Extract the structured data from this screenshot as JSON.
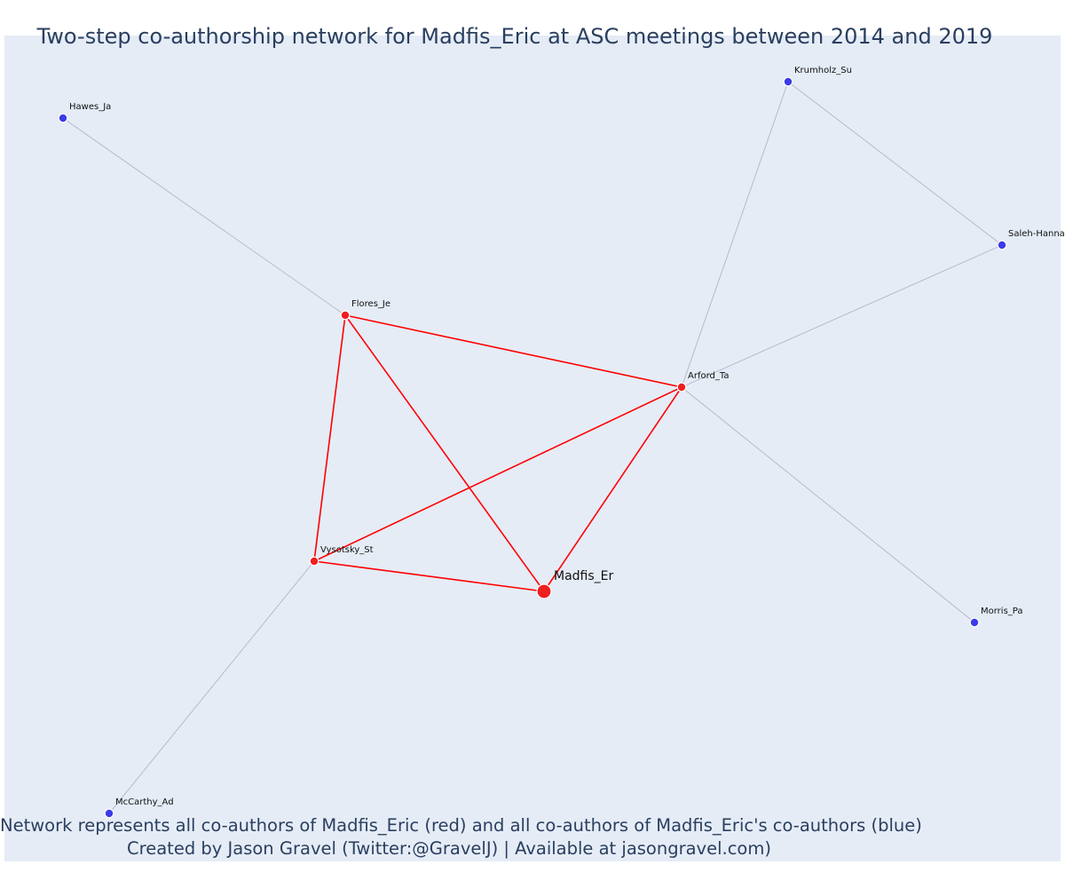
{
  "title": "Two-step co-authorship network for Madfis_Eric at ASC meetings between 2014 and 2019",
  "footer": {
    "line1": "Network represents all co-authors of Madfis_Eric (red) and all co-authors of Madfis_Eric's co-authors (blue)",
    "line2": "Created by Jason Gravel (Twitter:@GravelJ) | Available at jasongravel.com)"
  },
  "colors": {
    "background": "#e5ecf6",
    "coauthor": "#ef1f1f",
    "second_step": "#3b3be8",
    "coauthor_edge": "#ff0000",
    "second_step_edge": "#b4b4c8"
  },
  "network": {
    "focal": "Madfis_Er",
    "nodes": [
      {
        "id": "Madfis_Er",
        "label": "Madfis_Er",
        "group": "focal"
      },
      {
        "id": "Flores_Je",
        "label": "Flores_Je",
        "group": "coauthor"
      },
      {
        "id": "Arford_Ta",
        "label": "Arford_Ta",
        "group": "coauthor"
      },
      {
        "id": "Vysotsky_St",
        "label": "Vysotsky_St",
        "group": "coauthor"
      },
      {
        "id": "Hawes_Ja",
        "label": "Hawes_Ja",
        "group": "second_step"
      },
      {
        "id": "Krumholz_Su",
        "label": "Krumholz_Su",
        "group": "second_step"
      },
      {
        "id": "Saleh-Hanna",
        "label": "Saleh-Hanna",
        "group": "second_step"
      },
      {
        "id": "Morris_Pa",
        "label": "Morris_Pa",
        "group": "second_step"
      },
      {
        "id": "McCarthy_Ad",
        "label": "McCarthy_Ad",
        "group": "second_step"
      }
    ],
    "edges": [
      {
        "source": "Flores_Je",
        "target": "Arford_Ta",
        "type": "coauthor"
      },
      {
        "source": "Flores_Je",
        "target": "Vysotsky_St",
        "type": "coauthor"
      },
      {
        "source": "Flores_Je",
        "target": "Madfis_Er",
        "type": "coauthor"
      },
      {
        "source": "Arford_Ta",
        "target": "Vysotsky_St",
        "type": "coauthor"
      },
      {
        "source": "Arford_Ta",
        "target": "Madfis_Er",
        "type": "coauthor"
      },
      {
        "source": "Vysotsky_St",
        "target": "Madfis_Er",
        "type": "coauthor"
      },
      {
        "source": "Hawes_Ja",
        "target": "Flores_Je",
        "type": "second_step"
      },
      {
        "source": "Krumholz_Su",
        "target": "Arford_Ta",
        "type": "second_step"
      },
      {
        "source": "Krumholz_Su",
        "target": "Saleh-Hanna",
        "type": "second_step"
      },
      {
        "source": "Saleh-Hanna",
        "target": "Arford_Ta",
        "type": "second_step"
      },
      {
        "source": "Arford_Ta",
        "target": "Morris_Pa",
        "type": "second_step"
      },
      {
        "source": "Vysotsky_St",
        "target": "McCarthy_Ad",
        "type": "second_step"
      }
    ]
  }
}
